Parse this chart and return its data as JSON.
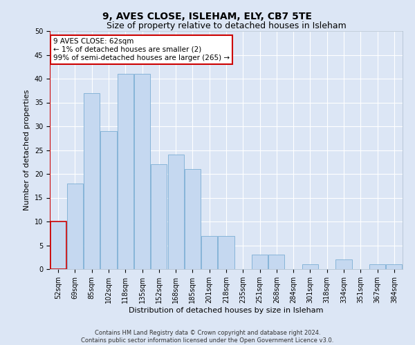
{
  "title": "9, AVES CLOSE, ISLEHAM, ELY, CB7 5TE",
  "subtitle": "Size of property relative to detached houses in Isleham",
  "xlabel": "Distribution of detached houses by size in Isleham",
  "ylabel": "Number of detached properties",
  "categories": [
    "52sqm",
    "69sqm",
    "85sqm",
    "102sqm",
    "118sqm",
    "135sqm",
    "152sqm",
    "168sqm",
    "185sqm",
    "201sqm",
    "218sqm",
    "235sqm",
    "251sqm",
    "268sqm",
    "284sqm",
    "301sqm",
    "318sqm",
    "334sqm",
    "351sqm",
    "367sqm",
    "384sqm"
  ],
  "values": [
    10,
    18,
    37,
    29,
    41,
    41,
    22,
    24,
    21,
    7,
    7,
    0,
    3,
    3,
    0,
    1,
    0,
    2,
    0,
    1,
    1
  ],
  "bar_color": "#c5d8f0",
  "bar_edge_color": "#7badd4",
  "highlight_bar_index": 0,
  "highlight_bar_color": "#c5d8f0",
  "highlight_bar_edge_color": "#cc0000",
  "highlight_line_color": "#cc0000",
  "ylim": [
    0,
    50
  ],
  "yticks": [
    0,
    5,
    10,
    15,
    20,
    25,
    30,
    35,
    40,
    45,
    50
  ],
  "annotation_text": "9 AVES CLOSE: 62sqm\n← 1% of detached houses are smaller (2)\n99% of semi-detached houses are larger (265) →",
  "annotation_box_color": "#ffffff",
  "annotation_box_edge_color": "#cc0000",
  "footer_line1": "Contains HM Land Registry data © Crown copyright and database right 2024.",
  "footer_line2": "Contains public sector information licensed under the Open Government Licence v3.0.",
  "background_color": "#dce6f5",
  "plot_background_color": "#dce6f5",
  "grid_color": "#ffffff",
  "title_fontsize": 10,
  "subtitle_fontsize": 9,
  "axis_label_fontsize": 8,
  "tick_fontsize": 7,
  "annotation_fontsize": 7.5,
  "footer_fontsize": 6
}
